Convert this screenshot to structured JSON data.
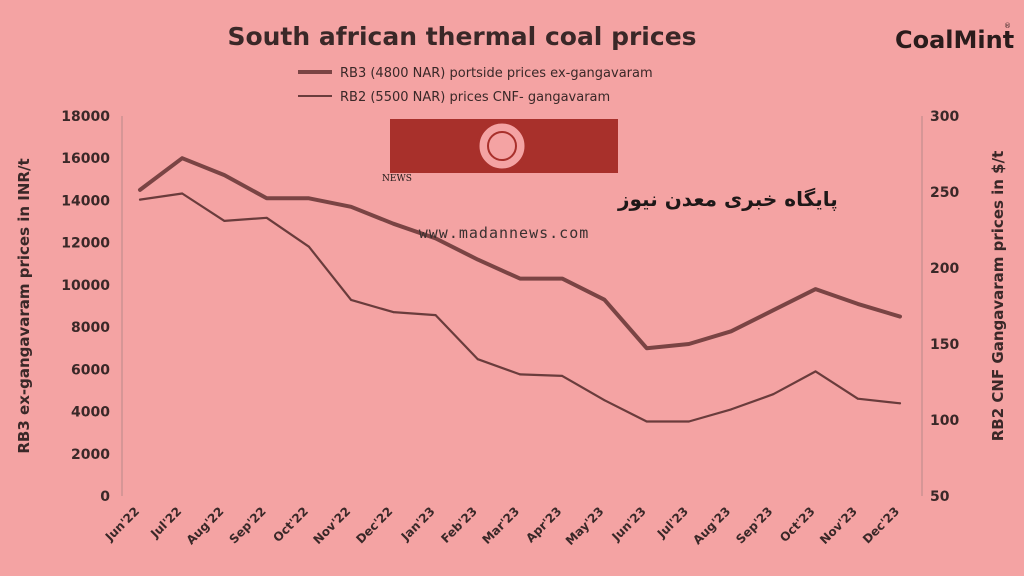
{
  "chart_data": {
    "type": "line",
    "title": "South african thermal coal prices",
    "categories": [
      "Jun'22",
      "Jul'22",
      "Aug'22",
      "Sep'22",
      "Oct'22",
      "Nov'22",
      "Dec'22",
      "Jan'23",
      "Feb'23",
      "Mar'23",
      "Apr'23",
      "May'23",
      "Jun'23",
      "Jul'23",
      "Aug'23",
      "Sep'23",
      "Oct'23",
      "Nov'23",
      "Dec'23"
    ],
    "y_left": {
      "label": "RB3 ex-gangavaram prices in INR/t",
      "range": [
        0,
        18000
      ],
      "ticks": [
        0,
        2000,
        4000,
        6000,
        8000,
        10000,
        12000,
        14000,
        16000,
        18000
      ]
    },
    "y_right": {
      "label": "RB2 CNF Gangavaram prices in $/t",
      "range": [
        50,
        300
      ],
      "ticks": [
        50,
        100,
        150,
        200,
        250,
        300
      ]
    },
    "series": [
      {
        "name": "RB3 (4800 NAR) portside prices ex-gangavaram",
        "axis": "left",
        "color": "#7a4444",
        "values": [
          14500,
          16000,
          15200,
          14100,
          14100,
          13700,
          12900,
          12200,
          11200,
          10300,
          10300,
          9300,
          7000,
          7200,
          7800,
          8800,
          9800,
          9100,
          8500
        ]
      },
      {
        "name": "RB2 (5500 NAR) prices CNF- gangavaram",
        "axis": "right",
        "color": "#6a3c3c",
        "values": [
          245,
          249,
          231,
          233,
          214,
          179,
          171,
          169,
          140,
          130,
          129,
          113,
          99,
          99,
          107,
          117,
          132,
          114,
          111
        ]
      }
    ],
    "grid": false,
    "legend": "top-center"
  },
  "brand": {
    "logo": "CoalMint",
    "logo_mark": "®"
  },
  "watermark": {
    "text_fa": "پایگاه خبری معدن نیوز",
    "url": "www.madannews.com",
    "small": "NEWS",
    "colors": {
      "banner": "#a8302b",
      "text": "#ffffff"
    }
  }
}
